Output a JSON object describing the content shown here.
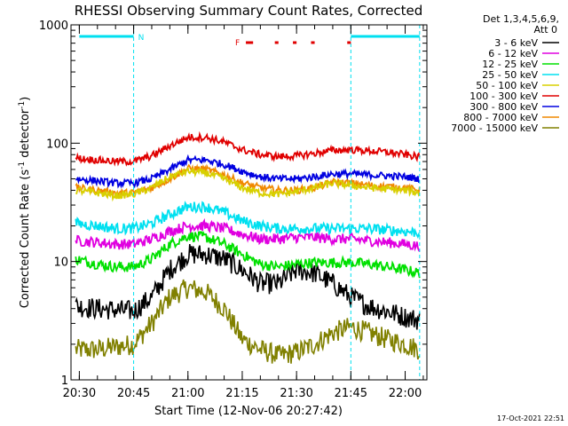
{
  "chart_data": {
    "type": "line",
    "title": "RHESSI Observing Summary Count Rates, Corrected",
    "xlabel": "Start Time (12-Nov-06 20:27:42)",
    "ylabel": "Corrected Count Rate (s⁻¹ detector⁻¹)",
    "ylabel_main": "Corrected Count Rate (s",
    "ylabel_sup1": "-1",
    "ylabel_mid": " detector",
    "ylabel_sup2": "-1",
    "ylabel_end": ")",
    "yscale": "log",
    "xlim": [
      "20:27:42",
      "22:06:00"
    ],
    "ylim": [
      1,
      1000
    ],
    "x_ticks": [
      "20:30",
      "20:45",
      "21:00",
      "21:15",
      "21:30",
      "21:45",
      "22:00"
    ],
    "y_ticks": [
      "1",
      "10",
      "100",
      "1000"
    ],
    "legend_header": "Det 1,3,4,5,6,9,",
    "legend_subheader": "Att 0",
    "footer_date": "17-Oct-2021 22:51",
    "annotations": {
      "night_label": "N",
      "flare_label": "F",
      "night_intervals": [
        [
          "20:30",
          "20:45"
        ],
        [
          "21:45",
          "22:04"
        ]
      ],
      "night_marks": [
        "20:45",
        "21:45",
        "22:04"
      ],
      "flare_intervals": [
        [
          "21:16",
          "21:18"
        ],
        [
          "21:24",
          "21:25"
        ],
        [
          "21:29",
          "21:30"
        ],
        [
          "21:34",
          "21:35"
        ],
        [
          "21:44",
          "21:45"
        ]
      ]
    },
    "x_sample_times": [
      "20:29",
      "20:35",
      "20:40",
      "20:45",
      "20:50",
      "20:55",
      "21:00",
      "21:05",
      "21:10",
      "21:15",
      "21:20",
      "21:25",
      "21:30",
      "21:35",
      "21:40",
      "21:45",
      "21:50",
      "21:55",
      "22:00",
      "22:04"
    ],
    "series": [
      {
        "name": "3 - 6 keV",
        "color": "#000000",
        "values": [
          4.2,
          4.0,
          3.9,
          3.8,
          5.0,
          8.5,
          11.5,
          11.5,
          10.5,
          8.5,
          6.5,
          6.5,
          8.5,
          8.0,
          6.5,
          5.0,
          4.2,
          3.8,
          3.4,
          3.2
        ]
      },
      {
        "name": "6 - 12 keV",
        "color": "#e000e0",
        "values": [
          15,
          14.5,
          14,
          14,
          15.5,
          18,
          20,
          20,
          19,
          17,
          15.5,
          15.5,
          16,
          16,
          15.5,
          15.5,
          15,
          14.5,
          14,
          13.5
        ]
      },
      {
        "name": "12 - 25 keV",
        "color": "#00e000",
        "values": [
          10.5,
          9.5,
          9.0,
          9.0,
          10.5,
          14.0,
          16.5,
          16.0,
          14.0,
          11.5,
          9.5,
          9.0,
          9.5,
          9.8,
          9.8,
          9.8,
          9.5,
          9.0,
          8.5,
          8.0
        ]
      },
      {
        "name": "25 - 50 keV",
        "color": "#00e0f0",
        "values": [
          21,
          20,
          19,
          19,
          21,
          25,
          29,
          29,
          26,
          22,
          20,
          19,
          19,
          19,
          19,
          19,
          19,
          18.5,
          18,
          17.5
        ]
      },
      {
        "name": "50 - 100 keV",
        "color": "#d8d000",
        "values": [
          40,
          38,
          36,
          37,
          42,
          52,
          58,
          56,
          50,
          42,
          38,
          37,
          39,
          42,
          46,
          44,
          42,
          41,
          40,
          38
        ]
      },
      {
        "name": "100 - 300 keV",
        "color": "#e00000",
        "values": [
          75,
          72,
          70,
          70,
          78,
          95,
          112,
          112,
          102,
          88,
          80,
          77,
          78,
          82,
          87,
          88,
          86,
          84,
          80,
          76
        ]
      },
      {
        "name": "300 - 800 keV",
        "color": "#0000e0",
        "values": [
          50,
          48,
          46,
          46,
          50,
          60,
          72,
          72,
          66,
          58,
          52,
          50,
          50,
          52,
          55,
          55,
          54,
          53,
          52,
          50
        ]
      },
      {
        "name": "800 - 7000 keV",
        "color": "#f08800",
        "values": [
          42,
          40,
          38,
          38,
          42,
          50,
          61,
          60,
          54,
          46,
          42,
          40,
          40,
          42,
          47,
          46,
          44,
          43,
          42,
          40
        ]
      },
      {
        "name": "7000 - 15000 keV",
        "color": "#808000",
        "values": [
          1.8,
          1.8,
          1.9,
          2.0,
          3.0,
          5.0,
          6.0,
          5.5,
          4.0,
          2.2,
          1.8,
          1.6,
          1.7,
          2.0,
          2.5,
          2.8,
          2.5,
          2.2,
          2.0,
          1.8
        ]
      }
    ]
  }
}
